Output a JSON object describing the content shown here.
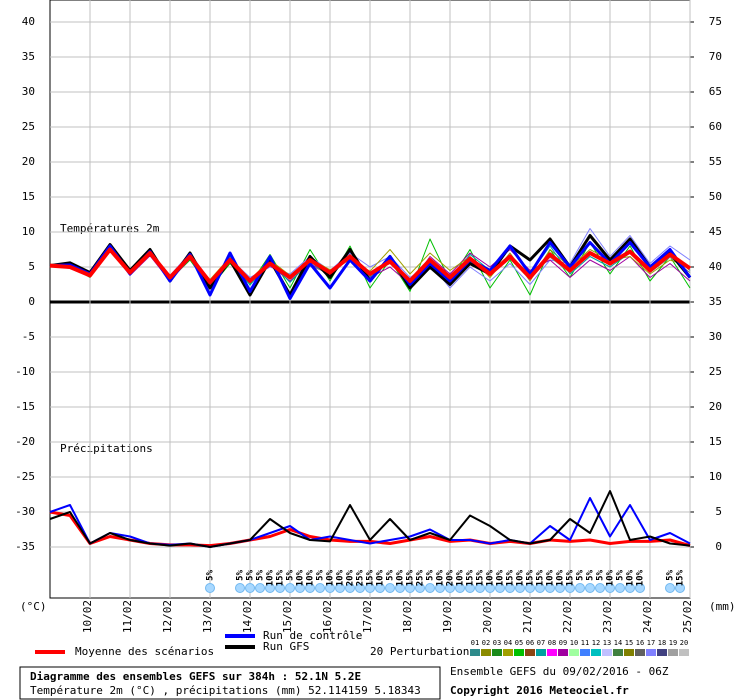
{
  "chart_data": {
    "type": "line",
    "x": [
      0,
      12,
      24,
      36,
      48,
      60,
      72,
      84,
      96,
      108,
      120,
      132,
      144,
      156,
      168,
      180,
      192,
      204,
      216,
      228,
      240,
      252,
      264,
      276,
      288,
      300,
      312,
      324,
      336,
      348,
      360,
      372,
      384
    ],
    "xlim": [
      0,
      384
    ],
    "xticks": [
      {
        "value": 24,
        "label": "10/02"
      },
      {
        "value": 48,
        "label": "11/02"
      },
      {
        "value": 72,
        "label": "12/02"
      },
      {
        "value": 96,
        "label": "13/02"
      },
      {
        "value": 120,
        "label": "14/02"
      },
      {
        "value": 144,
        "label": "15/02"
      },
      {
        "value": 168,
        "label": "16/02"
      },
      {
        "value": 192,
        "label": "17/02"
      },
      {
        "value": 216,
        "label": "18/02"
      },
      {
        "value": 240,
        "label": "19/02"
      },
      {
        "value": 264,
        "label": "20/02"
      },
      {
        "value": 288,
        "label": "21/02"
      },
      {
        "value": 312,
        "label": "22/02"
      },
      {
        "value": 336,
        "label": "23/02"
      },
      {
        "value": 360,
        "label": "24/02"
      },
      {
        "value": 384,
        "label": "25/02"
      }
    ],
    "ylim": [
      -35,
      40
    ],
    "yticks": [
      -35,
      -30,
      -25,
      -20,
      -15,
      -10,
      -5,
      0,
      5,
      10,
      15,
      20,
      25,
      30,
      35,
      40
    ],
    "y2lim": [
      0,
      75
    ],
    "y2ticks": [
      0,
      5,
      10,
      15,
      20,
      25,
      30,
      35,
      40,
      45,
      50,
      55,
      60,
      65,
      70,
      75
    ],
    "y_unit_label": "(°C)",
    "y2_unit_label": "(mm)",
    "panel_labels": [
      "Températures 2m",
      "Précipitations"
    ],
    "grid": true,
    "series": [
      {
        "name": "Moyenne des scénarios",
        "color": "#ff0000",
        "values": [
          5.2,
          5.0,
          3.8,
          7.5,
          4.2,
          7.0,
          3.5,
          6.5,
          2.8,
          6.0,
          3.0,
          5.5,
          3.5,
          6.0,
          4.2,
          6.5,
          4.0,
          5.8,
          3.0,
          6.0,
          3.5,
          6.2,
          4.0,
          6.5,
          3.5,
          6.8,
          4.5,
          7.0,
          5.5,
          7.2,
          4.5,
          6.8,
          4.8
        ]
      },
      {
        "name": "Run de contrôle",
        "color": "#0000ff",
        "values": [
          5.2,
          5.3,
          4.0,
          8.0,
          4.0,
          7.2,
          3.0,
          6.8,
          1.0,
          7.0,
          1.5,
          6.5,
          0.5,
          5.5,
          2.0,
          6.0,
          3.0,
          6.5,
          2.5,
          5.5,
          3.0,
          6.0,
          4.5,
          8.0,
          4.0,
          8.5,
          5.0,
          8.5,
          5.5,
          8.5,
          5.0,
          7.5,
          3.5
        ]
      },
      {
        "name": "Run GFS",
        "color": "#000000",
        "values": [
          5.2,
          5.6,
          4.2,
          8.2,
          4.5,
          7.5,
          3.0,
          7.0,
          2.0,
          6.0,
          1.0,
          6.0,
          1.0,
          6.5,
          3.5,
          7.5,
          3.0,
          6.5,
          2.0,
          5.0,
          2.5,
          5.5,
          4.0,
          8.0,
          6.0,
          9.0,
          5.0,
          9.5,
          6.0,
          9.0,
          5.0,
          7.0,
          3.5
        ]
      }
    ],
    "precipitation_series": [
      {
        "axis": "y2",
        "color": "#ff0000",
        "values": [
          5,
          4.5,
          0.5,
          1.5,
          1,
          0.5,
          0.3,
          0.3,
          0.2,
          0.5,
          1,
          1.5,
          2.5,
          1.5,
          1,
          0.8,
          0.8,
          0.5,
          1,
          1.5,
          0.8,
          1,
          0.5,
          0.8,
          0.5,
          1,
          0.8,
          1,
          0.5,
          0.8,
          0.8,
          1,
          0.2
        ]
      },
      {
        "axis": "y2",
        "color": "#0000ff",
        "values": [
          5,
          6,
          0.5,
          2,
          1.5,
          0.5,
          0.3,
          0.5,
          0,
          0.5,
          1,
          2,
          3,
          1,
          1.5,
          1,
          0.5,
          1,
          1.5,
          2.5,
          1,
          1,
          0.5,
          1,
          0.5,
          3,
          1,
          7,
          1.5,
          6,
          1,
          2,
          0.5
        ]
      },
      {
        "axis": "y2",
        "color": "#000000",
        "values": [
          4,
          5,
          0.5,
          2,
          1,
          0.5,
          0.2,
          0.5,
          0,
          0.5,
          1,
          4,
          2,
          1,
          0.8,
          6,
          1,
          4,
          1,
          2,
          1,
          4.5,
          3,
          1,
          0.5,
          1,
          4,
          2,
          8,
          1,
          1.5,
          0.5,
          0.2
        ]
      }
    ],
    "perturbations": [
      {
        "color": "#00c000",
        "values": [
          5.3,
          5.1,
          3.5,
          7.8,
          4.0,
          6.8,
          3.2,
          6.0,
          2.0,
          5.5,
          2.5,
          6.8,
          2.0,
          7.5,
          3.0,
          8.0,
          2.0,
          6.0,
          1.5,
          9.0,
          3.0,
          7.5,
          2.0,
          6.0,
          1.0,
          7.5,
          3.5,
          8.5,
          4.0,
          8.0,
          3.0,
          6.5,
          2.0
        ]
      },
      {
        "color": "#8080ff",
        "values": [
          5.0,
          5.4,
          4.2,
          7.2,
          4.5,
          7.2,
          3.8,
          7.0,
          3.0,
          6.2,
          3.5,
          5.0,
          4.0,
          6.5,
          4.5,
          7.0,
          5.0,
          6.5,
          3.5,
          5.5,
          2.0,
          5.0,
          3.0,
          5.5,
          2.5,
          6.0,
          5.5,
          10.5,
          6.5,
          9.5,
          5.5,
          8.0,
          6.0
        ]
      },
      {
        "color": "#a000a0",
        "values": [
          5.1,
          4.8,
          3.6,
          7.4,
          3.8,
          6.6,
          3.0,
          6.2,
          2.5,
          5.8,
          2.8,
          5.2,
          3.0,
          5.5,
          3.8,
          6.8,
          3.5,
          5.0,
          2.5,
          6.5,
          4.0,
          7.0,
          5.0,
          7.5,
          4.5,
          6.0,
          3.5,
          6.0,
          4.5,
          6.5,
          3.5,
          5.5,
          3.0
        ]
      },
      {
        "color": "#a0a000",
        "values": [
          5.4,
          5.2,
          4.0,
          7.6,
          4.4,
          7.4,
          3.6,
          6.6,
          3.2,
          6.4,
          3.2,
          6.0,
          3.8,
          6.2,
          4.6,
          6.0,
          4.4,
          7.5,
          4.0,
          7.0,
          4.5,
          6.5,
          3.5,
          7.0,
          3.0,
          7.5,
          5.0,
          7.5,
          6.0,
          6.5,
          4.0,
          6.0,
          5.0
        ]
      },
      {
        "color": "#00a0a0",
        "values": [
          5.2,
          5.0,
          3.9,
          7.3,
          4.1,
          6.9,
          3.4,
          6.4,
          2.6,
          6.6,
          2.4,
          5.8,
          2.8,
          5.8,
          3.6,
          6.6,
          3.6,
          6.2,
          2.0,
          6.2,
          3.0,
          6.8,
          4.5,
          7.8,
          4.0,
          8.0,
          4.0,
          6.5,
          5.0,
          7.0,
          4.8,
          7.2,
          4.5
        ]
      },
      {
        "color": "#808080",
        "values": [
          5.0,
          5.3,
          3.7,
          7.7,
          4.3,
          7.1,
          3.3,
          6.3,
          2.9,
          5.9,
          3.1,
          5.4,
          3.4,
          5.2,
          4.0,
          6.2,
          4.2,
          5.5,
          3.2,
          5.8,
          3.8,
          6.0,
          3.8,
          6.2,
          3.2,
          6.4,
          4.2,
          7.2,
          5.2,
          7.4,
          4.2,
          6.4,
          4.2
        ]
      }
    ],
    "perturbation_legend": {
      "title": "20 Perturbations",
      "labels": [
        "01",
        "02",
        "03",
        "04",
        "05",
        "06",
        "07",
        "08",
        "09",
        "10",
        "11",
        "12",
        "13",
        "14",
        "15",
        "16",
        "17",
        "18",
        "19",
        "20"
      ],
      "colors": [
        "#2e8b8b",
        "#8b8b00",
        "#1a8a1a",
        "#a0a000",
        "#00c000",
        "#8b4513",
        "#00a0a0",
        "#ff00ff",
        "#a000a0",
        "#a0ffa0",
        "#4080ff",
        "#00c0c0",
        "#c0c0ff",
        "#408040",
        "#808000",
        "#606060",
        "#8080ff",
        "#404080",
        "#a0a0a0",
        "#c0c0c0"
      ]
    },
    "snow": {
      "x": [
        96,
        114,
        120,
        126,
        132,
        138,
        144,
        150,
        156,
        162,
        168,
        174,
        180,
        186,
        192,
        198,
        204,
        210,
        216,
        222,
        228,
        234,
        240,
        246,
        252,
        258,
        264,
        270,
        276,
        282,
        288,
        294,
        300,
        306,
        312,
        318,
        324,
        330,
        336,
        342,
        348,
        354,
        372,
        378
      ],
      "values": [
        5,
        5,
        5,
        5,
        10,
        15,
        5,
        10,
        10,
        5,
        10,
        10,
        20,
        25,
        15,
        10,
        5,
        10,
        15,
        25,
        5,
        10,
        20,
        10,
        15,
        15,
        10,
        10,
        15,
        10,
        15,
        15,
        10,
        10,
        15,
        5,
        5,
        5,
        10,
        5,
        10,
        10,
        5,
        15
      ],
      "value_labels": [
        "5%",
        "5%",
        "5%",
        "5%",
        "10%",
        "15%",
        "5%",
        "10%",
        "10%",
        "5%",
        "10%",
        "10%",
        "20%",
        "25%",
        "15%",
        "10%",
        "5%",
        "10%",
        "15%",
        "25%",
        "5%",
        "10%",
        "20%",
        "10%",
        "15%",
        "15%",
        "10%",
        "10%",
        "15%",
        "10%",
        "15%",
        "15%",
        "10%",
        "10%",
        "15%",
        "5%",
        "5%",
        "5%",
        "10%",
        "5%",
        "10%",
        "10%",
        "5%",
        "15%"
      ]
    },
    "footer": {
      "title": "Diagramme des ensembles GEFS sur 384h : 52.1N 5.2E",
      "subtitle": "Température 2m (°C) , précipitations (mm) 52.114159 5.18343",
      "run": "Ensemble GEFS du 09/02/2016 - 06Z",
      "copyright": "Copyright 2016 Meteociel.fr"
    }
  }
}
